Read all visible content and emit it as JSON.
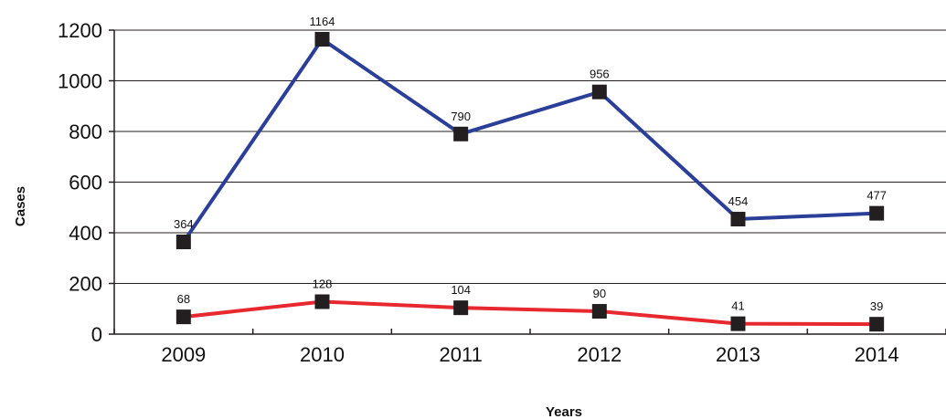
{
  "chart_data": {
    "type": "line",
    "categories": [
      "2009",
      "2010",
      "2011",
      "2012",
      "2013",
      "2014"
    ],
    "series": [
      {
        "values": [
          364,
          1164,
          790,
          956,
          454,
          477
        ],
        "color": "#2b3f99"
      },
      {
        "values": [
          68,
          128,
          104,
          90,
          41,
          39
        ],
        "color": "#e8282f"
      }
    ],
    "data_labels": [
      [
        "364",
        "1164",
        "790",
        "956",
        "454",
        "477"
      ],
      [
        "68",
        "128",
        "104",
        "90",
        "41",
        "39"
      ]
    ],
    "marker": "square",
    "marker_color": "#231f20",
    "title": "",
    "xlabel": "Years",
    "ylabel": "Cases",
    "ylim": [
      0,
      1200
    ],
    "yticks": [
      0,
      200,
      400,
      600,
      800,
      1000,
      1200
    ],
    "grid": true
  }
}
